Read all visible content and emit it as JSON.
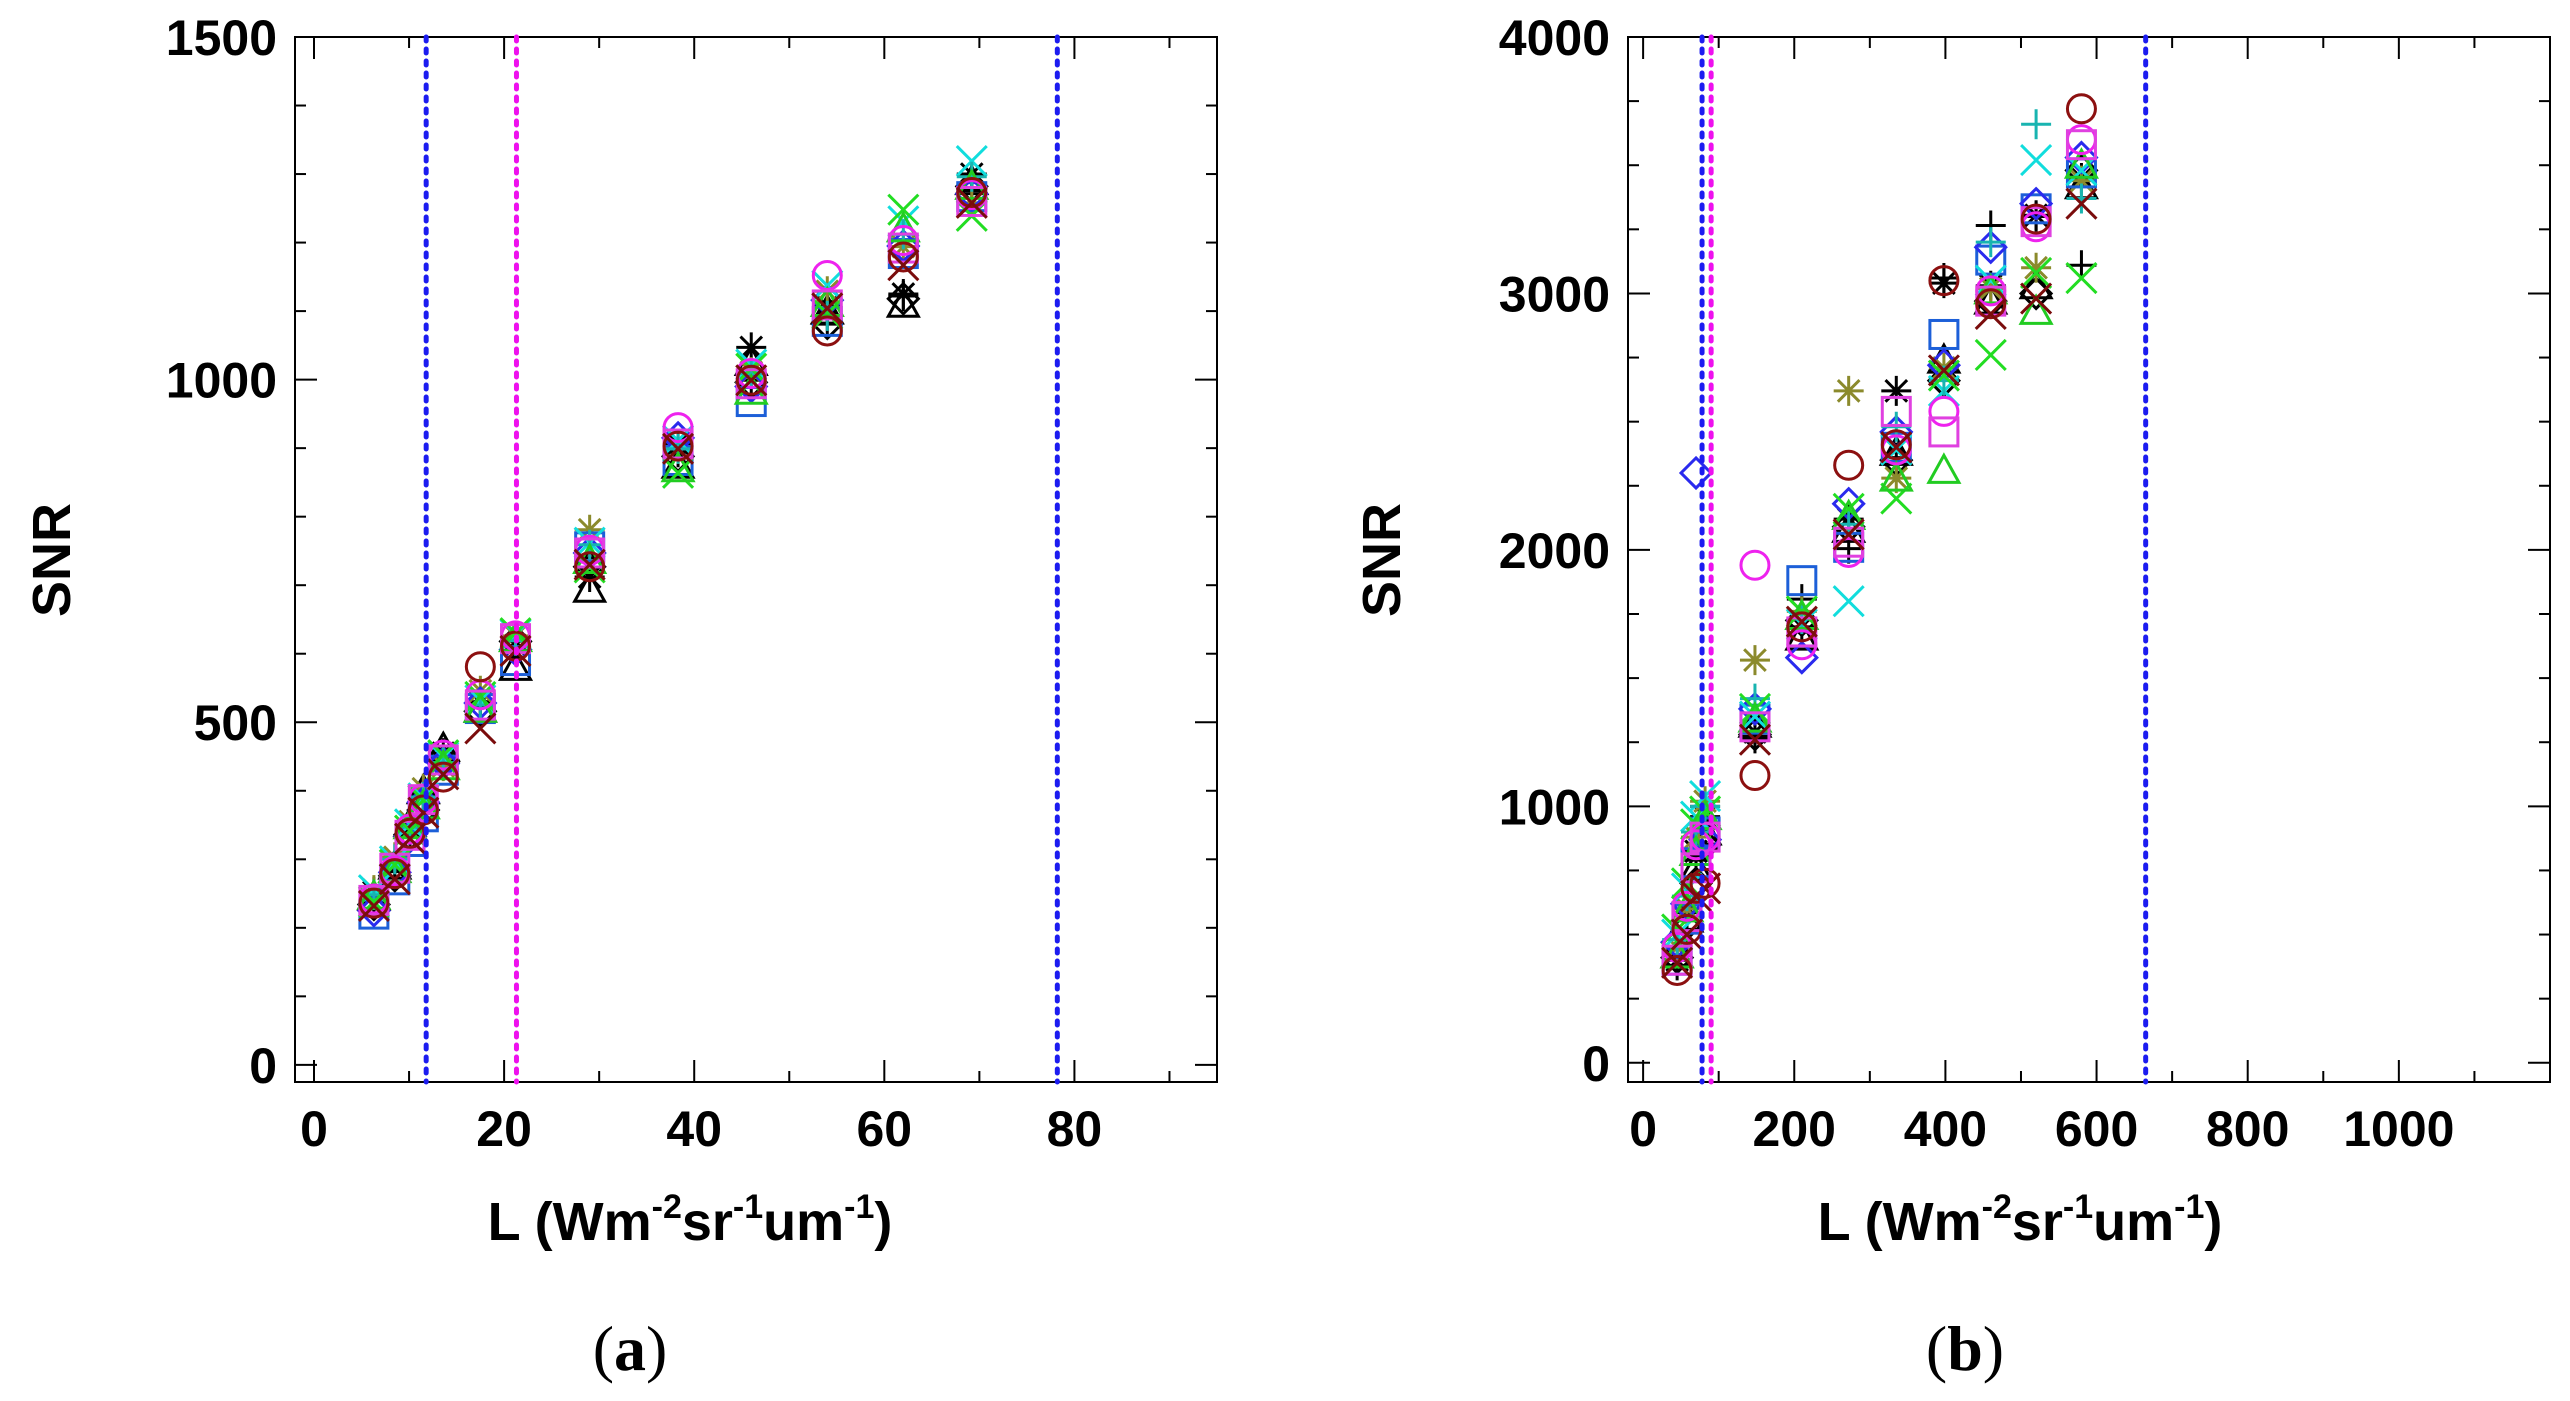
{
  "chart_data": [
    {
      "panel": "(a)",
      "panel_letter": "a",
      "type": "scatter",
      "xlabel": "L (Wm-2sr-1um-1)",
      "xlabel_parts": {
        "base": "L (Wm",
        "exp1": "-2",
        "mid": "sr",
        "exp2": "-1",
        "end": "um",
        "exp3": "-1",
        "close": ")"
      },
      "ylabel": "SNR",
      "xlim": [
        -2,
        95
      ],
      "ylim": [
        -25,
        1500
      ],
      "xticks": [
        0,
        20,
        40,
        60,
        80
      ],
      "xtick_labels": [
        "0",
        "20",
        "40",
        "60",
        "80"
      ],
      "xminor": [
        10,
        30,
        50,
        70,
        90
      ],
      "yticks": [
        0,
        500,
        1000,
        1500
      ],
      "ytick_labels": [
        "0",
        "500",
        "1000",
        "1500"
      ],
      "yminor": [
        100,
        200,
        300,
        400,
        600,
        700,
        800,
        900,
        1100,
        1200,
        1300,
        1400
      ],
      "vlines": [
        {
          "x": 11.8,
          "color": "#1c1cf0"
        },
        {
          "x": 21.3,
          "color": "#ee10ee"
        },
        {
          "x": 78.2,
          "color": "#1c1cf0"
        }
      ],
      "x": [
        6.3,
        8.5,
        10.1,
        11.5,
        13.6,
        17.5,
        21.2,
        29.0,
        38.3,
        46.0,
        54.0,
        62.0,
        69.2
      ],
      "series": [
        {
          "name": "black plus",
          "symbol": "plus",
          "color": "#000000",
          "values": [
            240,
            282,
            345,
            395,
            444,
            524,
            605,
            740,
            894,
            999,
            1081,
            1122,
            1276
          ]
        },
        {
          "name": "black asterisk",
          "symbol": "asterisk",
          "color": "#000000",
          "values": [
            252,
            288,
            341,
            389,
            455,
            530,
            612,
            712,
            906,
            1047,
            1107,
            1125,
            1300
          ]
        },
        {
          "name": "black triangle",
          "symbol": "triangle",
          "color": "#000000",
          "values": [
            245,
            290,
            352,
            400,
            462,
            519,
            580,
            694,
            875,
            1025,
            1100,
            1110,
            1289
          ]
        },
        {
          "name": "black diamond",
          "symbol": "diamond",
          "color": "#000000",
          "values": [
            234,
            276,
            336,
            372,
            442,
            516,
            618,
            727,
            888,
            996,
            1082,
            1118,
            1282
          ]
        },
        {
          "name": "olive asterisk",
          "symbol": "asterisk",
          "color": "#8b8a2c",
          "values": [
            255,
            303,
            355,
            403,
            436,
            546,
            626,
            781,
            899,
            1011,
            1129,
            1194,
            1258
          ]
        },
        {
          "name": "blue square",
          "symbol": "square",
          "color": "#1c5fd8",
          "values": [
            220,
            270,
            326,
            362,
            430,
            520,
            590,
            756,
            882,
            968,
            1085,
            1184,
            1267
          ]
        },
        {
          "name": "blue diamond",
          "symbol": "diamond",
          "color": "#2a2aee",
          "values": [
            225,
            281,
            333,
            383,
            440,
            528,
            606,
            747,
            915,
            990,
            1116,
            1195,
            1271
          ]
        },
        {
          "name": "cyan x",
          "symbol": "x",
          "color": "#11dddd",
          "values": [
            255,
            297,
            351,
            389,
            449,
            532,
            628,
            762,
            911,
            1022,
            1137,
            1231,
            1319
          ]
        },
        {
          "name": "cyan plus",
          "symbol": "plus",
          "color": "#18b4b0",
          "values": [
            248,
            300,
            347,
            391,
            441,
            525,
            619,
            759,
            899,
            1009,
            1093,
            1212,
            1296
          ]
        },
        {
          "name": "green x",
          "symbol": "x",
          "color": "#22dd22",
          "values": [
            238,
            292,
            342,
            386,
            452,
            537,
            630,
            726,
            864,
            1016,
            1096,
            1248,
            1239
          ]
        },
        {
          "name": "green triangle",
          "symbol": "triangle",
          "color": "#22cc22",
          "values": [
            246,
            285,
            349,
            378,
            435,
            519,
            622,
            736,
            870,
            983,
            1111,
            1220,
            1282
          ]
        },
        {
          "name": "magenta circle",
          "symbol": "circle",
          "color": "#ee22ee",
          "values": [
            242,
            283,
            344,
            388,
            452,
            540,
            626,
            751,
            930,
            1009,
            1152,
            1203,
            1270
          ]
        },
        {
          "name": "magenta square",
          "symbol": "square",
          "color": "#e040e0",
          "values": [
            240,
            287,
            335,
            387,
            445,
            525,
            622,
            747,
            906,
            994,
            1109,
            1192,
            1260
          ]
        },
        {
          "name": "darkred circle",
          "symbol": "circle",
          "color": "#8c1010",
          "values": [
            236,
            279,
            338,
            372,
            420,
            581,
            611,
            727,
            903,
            999,
            1071,
            1179,
            1273
          ]
        },
        {
          "name": "darkred x",
          "symbol": "x",
          "color": "#7a0c0c",
          "values": [
            232,
            271,
            330,
            368,
            424,
            491,
            604,
            730,
            899,
            999,
            1104,
            1167,
            1258
          ]
        }
      ]
    },
    {
      "panel": "(b)",
      "panel_letter": "b",
      "type": "scatter",
      "xlabel": "L (Wm-2sr-1um-1)",
      "xlabel_parts": {
        "base": "L (Wm",
        "exp1": "-2",
        "mid": "sr",
        "exp2": "-1",
        "end": "um",
        "exp3": "-1",
        "close": ")"
      },
      "ylabel": "SNR",
      "xlim": [
        -20,
        1200
      ],
      "ylim": [
        -75,
        4000
      ],
      "xticks": [
        0,
        200,
        400,
        600,
        800,
        1000
      ],
      "xtick_labels": [
        "0",
        "200",
        "400",
        "600",
        "800",
        "1000"
      ],
      "xminor": [
        100,
        300,
        500,
        700,
        900,
        1100
      ],
      "yticks": [
        0,
        1000,
        2000,
        3000,
        4000
      ],
      "ytick_labels": [
        "0",
        "1000",
        "2000",
        "3000",
        "4000"
      ],
      "yminor": [
        250,
        500,
        750,
        1250,
        1500,
        1750,
        2250,
        2500,
        2750,
        3250,
        3500,
        3750
      ],
      "vlines": [
        {
          "x": 78,
          "color": "#1c1cf0"
        },
        {
          "x": 90,
          "color": "#ee10ee"
        },
        {
          "x": 665,
          "color": "#1c1cf0"
        }
      ],
      "x": [
        45,
        58,
        70,
        82,
        148,
        210,
        272,
        335,
        398,
        460,
        520,
        580
      ],
      "series": [
        {
          "name": "black plus",
          "symbol": "plus",
          "color": "#000000",
          "values": [
            380,
            520,
            790,
            1000,
            1265,
            1808,
            2005,
            2360,
            3060,
            3265,
            3300,
            3110
          ]
        },
        {
          "name": "black asterisk",
          "symbol": "asterisk",
          "color": "#000000",
          "values": [
            400,
            585,
            825,
            960,
            1290,
            1700,
            2120,
            2620,
            3040,
            3030,
            3305,
            3450
          ]
        },
        {
          "name": "black triangle",
          "symbol": "triangle",
          "color": "#000000",
          "values": [
            420,
            560,
            760,
            900,
            1320,
            1660,
            2080,
            2380,
            2740,
            2970,
            3030,
            3420
          ]
        },
        {
          "name": "black diamond",
          "symbol": "diamond",
          "color": "#000000",
          "values": [
            410,
            540,
            700,
            850,
            1280,
            1725,
            2090,
            2350,
            2660,
            2970,
            3000,
            3480
          ]
        },
        {
          "name": "olive asterisk",
          "symbol": "asterisk",
          "color": "#8b8a2c",
          "values": [
            450,
            600,
            880,
            1020,
            1570,
            1760,
            2620,
            2280,
            2710,
            3020,
            3100,
            3440
          ]
        },
        {
          "name": "blue square",
          "symbol": "square",
          "color": "#1c5fd8",
          "values": [
            400,
            560,
            780,
            900,
            1340,
            1880,
            2010,
            2400,
            2840,
            3130,
            3330,
            3470
          ]
        },
        {
          "name": "blue diamond",
          "symbol": "diamond",
          "color": "#2a2aee",
          "values": [
            470,
            620,
            2300,
            870,
            1380,
            1580,
            2180,
            2460,
            2720,
            3180,
            3350,
            3530
          ]
        },
        {
          "name": "cyan x",
          "symbol": "x",
          "color": "#11dddd",
          "values": [
            500,
            680,
            960,
            1040,
            1350,
            1710,
            1800,
            2390,
            2620,
            3050,
            3520,
            3480
          ]
        },
        {
          "name": "cyan plus",
          "symbol": "plus",
          "color": "#18b4b0",
          "values": [
            480,
            650,
            900,
            1000,
            1420,
            1730,
            2100,
            2480,
            2660,
            3200,
            3660,
            3370
          ]
        },
        {
          "name": "green x",
          "symbol": "x",
          "color": "#22dd22",
          "values": [
            520,
            700,
            930,
            980,
            1380,
            1760,
            2160,
            2200,
            2680,
            2760,
            3080,
            3060
          ]
        },
        {
          "name": "green triangle",
          "symbol": "triangle",
          "color": "#22cc22",
          "values": [
            420,
            600,
            820,
            960,
            1340,
            1740,
            2130,
            2280,
            2310,
            3010,
            2930,
            3500
          ]
        },
        {
          "name": "magenta circle",
          "symbol": "circle",
          "color": "#ee22ee",
          "values": [
            450,
            610,
            850,
            880,
            1940,
            1630,
            1990,
            2390,
            2540,
            3010,
            3260,
            3600
          ]
        },
        {
          "name": "magenta square",
          "symbol": "square",
          "color": "#e040e0",
          "values": [
            400,
            570,
            760,
            880,
            1310,
            1680,
            2030,
            2540,
            2460,
            2970,
            3280,
            3580
          ]
        },
        {
          "name": "darkred circle",
          "symbol": "circle",
          "color": "#8c1010",
          "values": [
            360,
            520,
            680,
            700,
            1120,
            1700,
            2330,
            2410,
            3050,
            2960,
            3290,
            3720
          ]
        },
        {
          "name": "darkred x",
          "symbol": "x",
          "color": "#7a0c0c",
          "values": [
            390,
            500,
            650,
            680,
            1260,
            1720,
            2060,
            2400,
            2700,
            2920,
            2980,
            3350
          ]
        }
      ]
    }
  ]
}
